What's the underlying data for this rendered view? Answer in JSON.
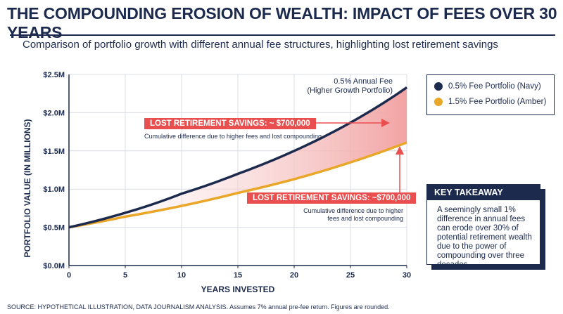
{
  "title": "THE COMPOUNDING EROSION OF WEALTH: IMPACT OF FEES OVER 30 YEARS",
  "subtitle": "Comparison of portfolio growth with different annual fee structures, highlighting lost retirement savings",
  "colors": {
    "navy": "#1c2a4d",
    "amber": "#e9a628",
    "red": "#e94f4f",
    "fill": "#f2a3a3"
  },
  "legend": {
    "items": [
      {
        "label": "0.5% Fee Portfolio (Navy)",
        "color": "#1c2a4d"
      },
      {
        "label": "1.5% Fee Portfolio (Amber)",
        "color": "#e9a628"
      }
    ]
  },
  "annotations": {
    "line_label_1": "0.5% Annual Fee",
    "line_label_2": "(Higher Growth Portfolio)",
    "callout1_title": "LOST RETIREMENT SAVINGS: ~ $700,000",
    "callout1_sub": "Cumulative difference due to higher fees and lost compounding",
    "callout2_title": "LOST RETIREMENT SAVINGS: ~$700,000",
    "callout2_sub_1": "Cumulative difference due to higher",
    "callout2_sub_2": "fees and lost compounding"
  },
  "takeaway": {
    "heading": "KEY TAKEAWAY",
    "body": "A seemingly small 1% difference in annual fees can erode over 30% of potential retirement wealth due to the power of compounding over three decades."
  },
  "source": "SOURCE: HYPOTHETICAL ILLUSTRATION, DATA JOURNALISM ANALYSIS. Assumes 7% annual pre-fee return. Figures are rounded.",
  "chart_data": {
    "type": "line",
    "xlabel": "YEARS INVESTED",
    "ylabel": "PORTFOLIO VALUE (IN MILLIONS)",
    "xlim": [
      0,
      30
    ],
    "ylim": [
      0,
      2.5
    ],
    "x_ticks": [
      "0",
      "5",
      "10",
      "15",
      "20",
      "25",
      "30"
    ],
    "y_ticks": [
      "$0.0M",
      "$0.5M",
      "$1.0M",
      "$1.5M",
      "$2.0M",
      "$2.5M"
    ],
    "grid": true,
    "legend_position": "right",
    "series": [
      {
        "name": "0.5% Fee Portfolio (Navy)",
        "x": [
          0,
          5,
          10,
          15,
          20,
          25,
          30
        ],
        "values": [
          0.5,
          0.69,
          0.94,
          1.2,
          1.5,
          1.87,
          2.33
        ]
      },
      {
        "name": "1.5% Fee Portfolio (Amber)",
        "x": [
          0,
          5,
          10,
          15,
          20,
          25,
          30
        ],
        "values": [
          0.5,
          0.64,
          0.78,
          0.95,
          1.13,
          1.35,
          1.61
        ]
      }
    ]
  }
}
